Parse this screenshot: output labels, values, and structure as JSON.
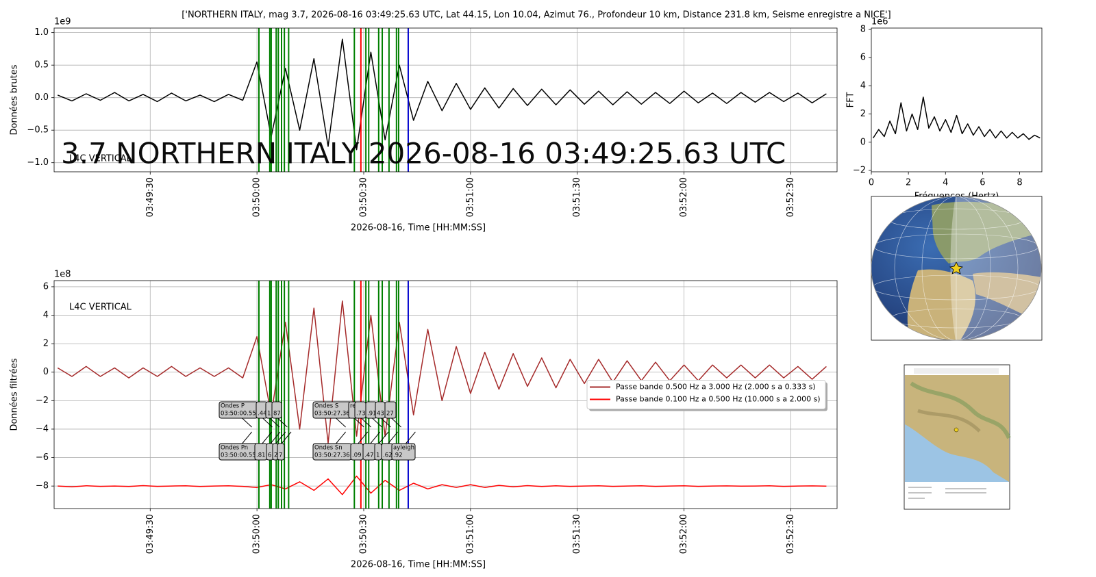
{
  "chart_data": [
    {
      "type": "line",
      "title": "['NORTHERN ITALY, mag 3.7, 2026-08-16 03:49:25.63 UTC, Lat 44.15, Lon 10.04, Azimut 76., Profondeur 10 km, Distance 231.8 km, Seisme enregistre a NICE']",
      "ylabel": "Données brutes",
      "xlabel": "2026-08-16, Time [HH:MM:SS]",
      "y_offset": "1e9",
      "watermark": "3.7 NORTHERN ITALY 2026-08-16 03:49:25.63 UTC",
      "watermark_color": "#f08080",
      "station_label": "L4C VERTICAL",
      "station_label_color": "#f08080",
      "grid": true,
      "xlim": [
        "03:49:03",
        "03:52:43"
      ],
      "xticks": [
        "03:49:30",
        "03:50:00",
        "03:50:30",
        "03:51:00",
        "03:51:30",
        "03:52:00",
        "03:52:30"
      ],
      "ylim": [
        -1.14,
        1.07
      ],
      "yticks": [
        {
          "value": 1,
          "label": "1.0"
        },
        0.5,
        {
          "value": 0,
          "label": "0.0"
        },
        {
          "value": -0.5,
          "label": "−0.5"
        },
        {
          "value": -1,
          "label": "−1.0"
        }
      ],
      "x": [
        "03:49:04",
        "03:49:08",
        "03:49:12",
        "03:49:16",
        "03:49:20",
        "03:49:24",
        "03:49:28",
        "03:49:32",
        "03:49:36",
        "03:49:40",
        "03:49:44",
        "03:49:48",
        "03:49:52",
        "03:49:56",
        "03:50:00",
        "03:50:04",
        "03:50:08",
        "03:50:12",
        "03:50:16",
        "03:50:20",
        "03:50:24",
        "03:50:28",
        "03:50:32",
        "03:50:36",
        "03:50:40",
        "03:50:44",
        "03:50:48",
        "03:50:52",
        "03:50:56",
        "03:51:00",
        "03:51:04",
        "03:51:08",
        "03:51:12",
        "03:51:16",
        "03:51:20",
        "03:51:24",
        "03:51:28",
        "03:51:32",
        "03:51:36",
        "03:51:40",
        "03:51:44",
        "03:51:48",
        "03:51:52",
        "03:51:56",
        "03:52:00",
        "03:52:04",
        "03:52:08",
        "03:52:12",
        "03:52:16",
        "03:52:20",
        "03:52:24",
        "03:52:28",
        "03:52:32",
        "03:52:36",
        "03:52:40"
      ],
      "series": [
        {
          "color": "#000000",
          "values": [
            0.04,
            -0.05,
            0.06,
            -0.04,
            0.08,
            -0.05,
            0.05,
            -0.06,
            0.07,
            -0.05,
            0.04,
            -0.06,
            0.05,
            -0.04,
            0.55,
            -0.6,
            0.45,
            -0.5,
            0.6,
            -0.75,
            0.9,
            -0.8,
            0.7,
            -0.65,
            0.5,
            -0.35,
            0.25,
            -0.2,
            0.22,
            -0.18,
            0.15,
            -0.16,
            0.14,
            -0.12,
            0.13,
            -0.11,
            0.12,
            -0.1,
            0.1,
            -0.11,
            0.09,
            -0.1,
            0.08,
            -0.09,
            0.1,
            -0.08,
            0.07,
            -0.09,
            0.08,
            -0.07,
            0.08,
            -0.06,
            0.07,
            -0.08,
            0.06
          ]
        }
      ],
      "picks": [
        {
          "time": "03:50:00.55",
          "color": "#008000"
        },
        {
          "time": "03:50:03.6",
          "color": "#008000"
        },
        {
          "time": "03:50:04",
          "color": "#008000"
        },
        {
          "time": "03:50:05.4",
          "color": "#008000"
        },
        {
          "time": "03:50:06",
          "color": "#008000"
        },
        {
          "time": "03:50:06.9",
          "color": "#008000"
        },
        {
          "time": "03:50:07.7",
          "color": "#008000"
        },
        {
          "time": "03:50:08.9",
          "color": "#008000"
        },
        {
          "time": "03:50:27.36",
          "color": "#008000"
        },
        {
          "time": "03:50:30.6",
          "color": "#008000"
        },
        {
          "time": "03:50:31.4",
          "color": "#008000"
        },
        {
          "time": "03:50:34.2",
          "color": "#008000"
        },
        {
          "time": "03:50:35.2",
          "color": "#008000"
        },
        {
          "time": "03:50:37.1",
          "color": "#008000"
        },
        {
          "time": "03:50:39.2",
          "color": "#008000"
        },
        {
          "time": "03:50:39.8",
          "color": "#008000"
        },
        {
          "time": "03:50:29.2",
          "color": "#ff0000"
        },
        {
          "time": "03:50:42.5",
          "color": "#0000cd"
        }
      ]
    },
    {
      "type": "line",
      "ylabel": "FFT",
      "xlabel": "Fréquences (Hertz)",
      "y_offset": "1e6",
      "grid": false,
      "xlim": [
        0,
        9.2
      ],
      "xticks": [
        0,
        2,
        4,
        6,
        8
      ],
      "ylim": [
        -2.1,
        8.1
      ],
      "yticks": [
        {
          "value": -2,
          "label": "−2"
        },
        0,
        2,
        4,
        6,
        8
      ],
      "x": [
        0.1,
        0.4,
        0.7,
        1.0,
        1.3,
        1.6,
        1.9,
        2.2,
        2.5,
        2.8,
        3.1,
        3.4,
        3.7,
        4.0,
        4.3,
        4.6,
        4.9,
        5.2,
        5.5,
        5.8,
        6.1,
        6.4,
        6.7,
        7.0,
        7.3,
        7.6,
        7.9,
        8.2,
        8.5,
        8.8,
        9.1
      ],
      "series": [
        {
          "color": "#000000",
          "values": [
            0.3,
            0.9,
            0.4,
            1.5,
            0.6,
            2.8,
            0.8,
            2.0,
            0.9,
            3.2,
            1.0,
            1.8,
            0.8,
            1.6,
            0.7,
            1.9,
            0.6,
            1.3,
            0.5,
            1.1,
            0.4,
            0.9,
            0.3,
            0.8,
            0.3,
            0.7,
            0.3,
            0.6,
            0.2,
            0.5,
            0.3
          ]
        }
      ]
    },
    {
      "type": "line",
      "ylabel": "Données filtrées",
      "xlabel": "2026-08-16, Time [HH:MM:SS]",
      "y_offset": "1e8",
      "station_label": "L4C VERTICAL",
      "station_label_color": "#a020a0",
      "grid": true,
      "legend": "center right",
      "xlim": [
        "03:49:03",
        "03:52:43"
      ],
      "xticks": [
        "03:49:30",
        "03:50:00",
        "03:50:30",
        "03:51:00",
        "03:51:30",
        "03:52:00",
        "03:52:30"
      ],
      "ylim": [
        -9.58,
        6.43
      ],
      "yticks": [
        6,
        4,
        2,
        0,
        {
          "value": -2,
          "label": "−2"
        },
        {
          "value": -4,
          "label": "−4"
        },
        {
          "value": -6,
          "label": "−6"
        },
        {
          "value": -8,
          "label": "−8"
        }
      ],
      "x": [
        "03:49:04",
        "03:49:08",
        "03:49:12",
        "03:49:16",
        "03:49:20",
        "03:49:24",
        "03:49:28",
        "03:49:32",
        "03:49:36",
        "03:49:40",
        "03:49:44",
        "03:49:48",
        "03:49:52",
        "03:49:56",
        "03:50:00",
        "03:50:04",
        "03:50:08",
        "03:50:12",
        "03:50:16",
        "03:50:20",
        "03:50:24",
        "03:50:28",
        "03:50:32",
        "03:50:36",
        "03:50:40",
        "03:50:44",
        "03:50:48",
        "03:50:52",
        "03:50:56",
        "03:51:00",
        "03:51:04",
        "03:51:08",
        "03:51:12",
        "03:51:16",
        "03:51:20",
        "03:51:24",
        "03:51:28",
        "03:51:32",
        "03:51:36",
        "03:51:40",
        "03:51:44",
        "03:51:48",
        "03:51:52",
        "03:51:56",
        "03:52:00",
        "03:52:04",
        "03:52:08",
        "03:52:12",
        "03:52:16",
        "03:52:20",
        "03:52:24",
        "03:52:28",
        "03:52:32",
        "03:52:36",
        "03:52:40"
      ],
      "series": [
        {
          "name": "Passe bande 0.500 Hz a 3.000 Hz (2.000 s a 0.333 s)",
          "color": "#a52a2a",
          "values": [
            0.3,
            -0.3,
            0.4,
            -0.3,
            0.3,
            -0.4,
            0.3,
            -0.3,
            0.4,
            -0.3,
            0.3,
            -0.3,
            0.3,
            -0.4,
            2.5,
            -3,
            3.5,
            -4,
            4.5,
            -5,
            5,
            -4.5,
            4,
            -4.5,
            3.5,
            -3,
            3,
            -2,
            1.8,
            -1.5,
            1.4,
            -1.2,
            1.3,
            -1,
            1,
            -1.1,
            0.9,
            -0.8,
            0.9,
            -0.7,
            0.8,
            -0.6,
            0.7,
            -0.6,
            0.5,
            -0.6,
            0.5,
            -0.4,
            0.5,
            -0.4,
            0.5,
            -0.4,
            0.4,
            -0.5,
            0.4
          ]
        },
        {
          "name": "Passe bande 0.100 Hz a 0.500 Hz (10.000 s a 2.000 s)",
          "color": "#ff0000",
          "values": [
            -8,
            -8.05,
            -7.98,
            -8.02,
            -8,
            -8.03,
            -7.97,
            -8.02,
            -8,
            -7.98,
            -8.03,
            -8,
            -7.98,
            -8.02,
            -8.1,
            -7.9,
            -8.2,
            -7.7,
            -8.3,
            -7.5,
            -8.6,
            -7.3,
            -8.5,
            -7.6,
            -8.3,
            -7.8,
            -8.2,
            -7.9,
            -8.1,
            -7.9,
            -8.1,
            -7.95,
            -8.05,
            -7.97,
            -8.03,
            -7.98,
            -8.02,
            -8,
            -7.98,
            -8.02,
            -8,
            -7.98,
            -8.02,
            -8,
            -7.98,
            -8.02,
            -8,
            -7.99,
            -8.01,
            -8,
            -7.98,
            -8.02,
            -8,
            -7.99,
            -8.01
          ]
        }
      ],
      "picks": [
        {
          "time": "03:50:00.55",
          "color": "#008000"
        },
        {
          "time": "03:50:03.6",
          "color": "#008000"
        },
        {
          "time": "03:50:04",
          "color": "#008000"
        },
        {
          "time": "03:50:05.4",
          "color": "#008000"
        },
        {
          "time": "03:50:06",
          "color": "#008000"
        },
        {
          "time": "03:50:06.9",
          "color": "#008000"
        },
        {
          "time": "03:50:07.7",
          "color": "#008000"
        },
        {
          "time": "03:50:08.9",
          "color": "#008000"
        },
        {
          "time": "03:50:27.36",
          "color": "#008000"
        },
        {
          "time": "03:50:30.6",
          "color": "#008000"
        },
        {
          "time": "03:50:31.4",
          "color": "#008000"
        },
        {
          "time": "03:50:34.2",
          "color": "#008000"
        },
        {
          "time": "03:50:35.2",
          "color": "#008000"
        },
        {
          "time": "03:50:37.1",
          "color": "#008000"
        },
        {
          "time": "03:50:39.2",
          "color": "#008000"
        },
        {
          "time": "03:50:39.8",
          "color": "#008000"
        },
        {
          "time": "03:50:29.2",
          "color": "#ff0000"
        },
        {
          "time": "03:50:42.5",
          "color": "#0000cd"
        }
      ],
      "annotations": [
        {
          "lines": [
            "Ondes P",
            "03:50:00.55"
          ]
        },
        {
          "lines": [
            ".44"
          ]
        },
        {
          "lines": [
            "1"
          ]
        },
        {
          "lines": [
            "87"
          ]
        },
        {
          "lines": [
            "Ondes S",
            "03:50:27.36"
          ]
        },
        {
          "lines": [
            "re"
          ]
        },
        {
          "lines": [
            ".73"
          ]
        },
        {
          "lines": [
            ".91"
          ]
        },
        {
          "lines": [
            "43"
          ]
        },
        {
          "lines": [
            "27"
          ]
        },
        {
          "lines": [
            "Ondes Pn",
            "03:50:00.55"
          ]
        },
        {
          "lines": [
            ".81"
          ]
        },
        {
          "lines": [
            "6"
          ]
        },
        {
          "lines": [
            "2"
          ]
        },
        {
          "lines": [
            "7"
          ]
        },
        {
          "lines": [
            "Ondes Sn",
            "03:50:27.36"
          ]
        },
        {
          "lines": [
            ".09"
          ]
        },
        {
          "lines": [
            ".47"
          ]
        },
        {
          "lines": [
            "1"
          ]
        },
        {
          "lines": [
            ".62"
          ]
        },
        {
          "lines": [
            "ayleigh",
            ".92"
          ]
        }
      ]
    }
  ]
}
